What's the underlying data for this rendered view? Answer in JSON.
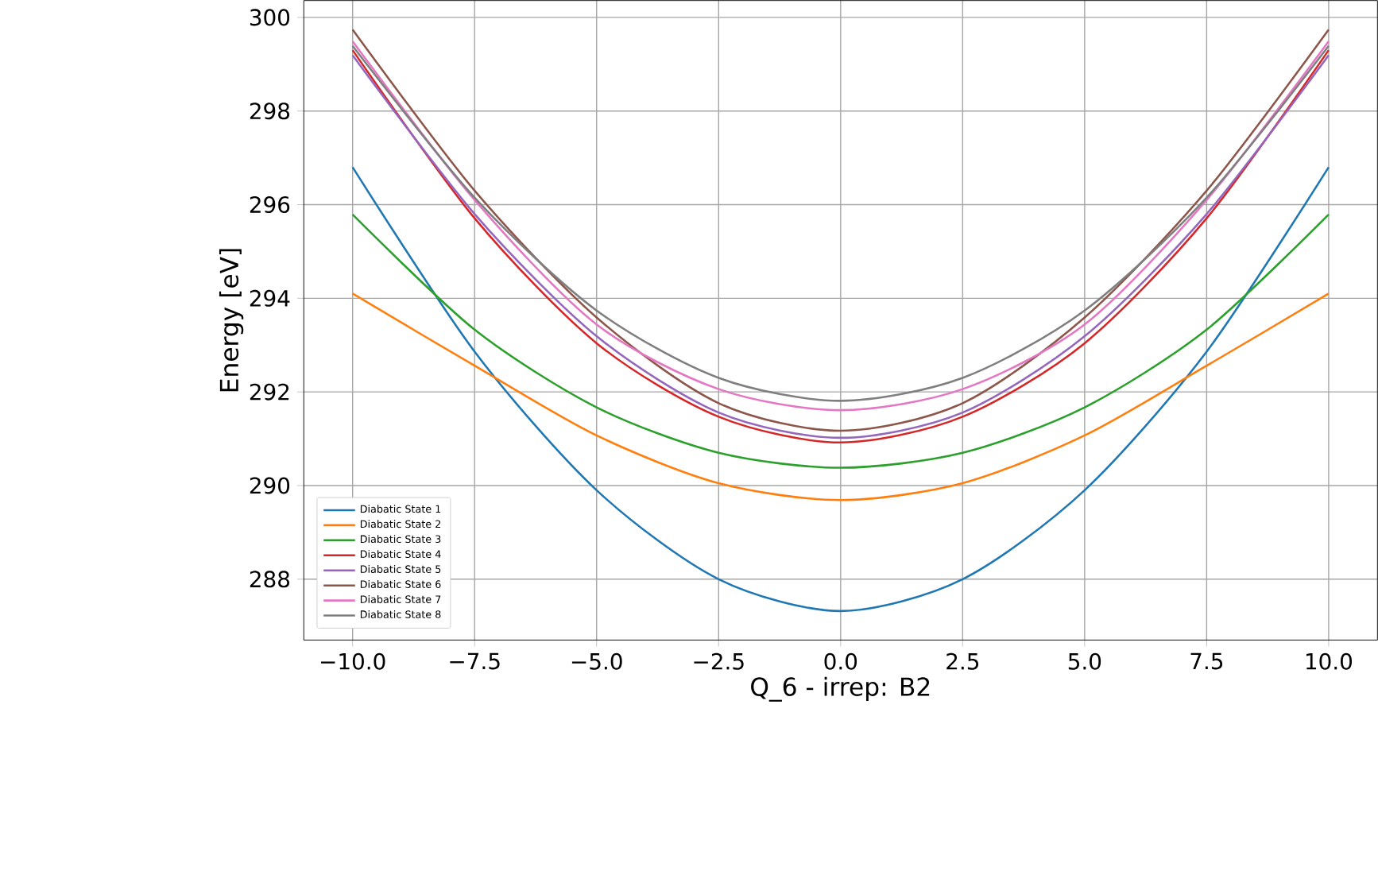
{
  "chart_data": {
    "type": "line",
    "xlabel": "Q_6 - irrep: B2",
    "ylabel": "Energy [eV]",
    "x": [
      -10,
      -7.5,
      -5,
      -2.5,
      0,
      2.5,
      5,
      7.5,
      10
    ],
    "series": [
      {
        "name": "Diabatic State 1",
        "color": "#1f77b4",
        "values": [
          296.8,
          292.86,
          289.9,
          288.0,
          287.32,
          288.0,
          289.9,
          292.86,
          296.8
        ]
      },
      {
        "name": "Diabatic State 2",
        "color": "#ff7f0e",
        "values": [
          294.1,
          292.56,
          291.07,
          290.05,
          289.69,
          290.05,
          291.07,
          292.56,
          294.1
        ]
      },
      {
        "name": "Diabatic State 3",
        "color": "#2ca02c",
        "values": [
          295.79,
          293.33,
          291.67,
          290.7,
          290.38,
          290.7,
          291.67,
          293.33,
          295.79
        ]
      },
      {
        "name": "Diabatic State 4",
        "color": "#d62728",
        "values": [
          299.3,
          295.71,
          293.04,
          291.47,
          290.92,
          291.47,
          293.04,
          295.71,
          299.3
        ]
      },
      {
        "name": "Diabatic State 5",
        "color": "#9467bd",
        "values": [
          299.19,
          295.8,
          293.19,
          291.56,
          291.02,
          291.56,
          293.19,
          295.8,
          299.19
        ]
      },
      {
        "name": "Diabatic State 6",
        "color": "#8c564b",
        "values": [
          299.74,
          296.3,
          293.59,
          291.76,
          291.17,
          291.76,
          293.59,
          296.3,
          299.74
        ]
      },
      {
        "name": "Diabatic State 7",
        "color": "#e377c2",
        "values": [
          299.49,
          296.1,
          293.44,
          292.06,
          291.61,
          292.06,
          293.44,
          296.1,
          299.49
        ]
      },
      {
        "name": "Diabatic State 8",
        "color": "#7f7f7f",
        "values": [
          299.39,
          296.15,
          293.74,
          292.3,
          291.81,
          292.3,
          293.74,
          296.15,
          299.39
        ]
      }
    ],
    "xlim": [
      -11,
      11
    ],
    "ylim": [
      286.7,
      300.36
    ],
    "xticks": [
      {
        "value": -10,
        "label": "−10.0"
      },
      {
        "value": -7.5,
        "label": "−7.5"
      },
      {
        "value": -5,
        "label": "−5.0"
      },
      {
        "value": -2.5,
        "label": "−2.5"
      },
      {
        "value": 0,
        "label": "0.0"
      },
      {
        "value": 2.5,
        "label": "2.5"
      },
      {
        "value": 5,
        "label": "5.0"
      },
      {
        "value": 7.5,
        "label": "7.5"
      },
      {
        "value": 10,
        "label": "10.0"
      }
    ],
    "yticks": [
      288,
      290,
      292,
      294,
      296,
      298,
      300
    ],
    "grid": true,
    "legend": "bottom left",
    "marker": "none",
    "line_style": "solid"
  }
}
